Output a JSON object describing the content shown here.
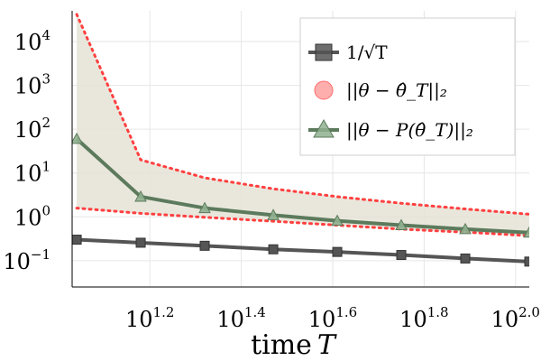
{
  "chart_data": {
    "type": "line",
    "title": "",
    "xlabel_prefix": "time",
    "xlabel_var": "T",
    "ylabel": "",
    "x_scale": "log10",
    "y_scale": "log10",
    "xlim_log10": [
      1.03,
      2.03
    ],
    "ylim_log10": [
      -1.6,
      4.7
    ],
    "x_ticks": [
      {
        "base": "10",
        "exp": "1.2",
        "log10": 1.2
      },
      {
        "base": "10",
        "exp": "1.4",
        "log10": 1.4
      },
      {
        "base": "10",
        "exp": "1.6",
        "log10": 1.6
      },
      {
        "base": "10",
        "exp": "1.8",
        "log10": 1.8
      },
      {
        "base": "10",
        "exp": "2.0",
        "log10": 2.0
      }
    ],
    "y_ticks": [
      {
        "base": "10",
        "exp": "−1",
        "log10": -1
      },
      {
        "base": "10",
        "exp": "0",
        "log10": 0
      },
      {
        "base": "10",
        "exp": "1",
        "log10": 1
      },
      {
        "base": "10",
        "exp": "2",
        "log10": 2
      },
      {
        "base": "10",
        "exp": "3",
        "log10": 3
      },
      {
        "base": "10",
        "exp": "4",
        "log10": 4
      }
    ],
    "grid": true,
    "legend_position": "top-right",
    "series": [
      {
        "name": "1/√T",
        "color": "#555555",
        "marker": "square",
        "x_log10": [
          1.04,
          1.18,
          1.32,
          1.47,
          1.61,
          1.75,
          1.89,
          2.03
        ],
        "y_log10": [
          -0.52,
          -0.59,
          -0.66,
          -0.74,
          -0.8,
          -0.87,
          -0.95,
          -1.02
        ]
      },
      {
        "name": "||θ − θ̂_T||₂",
        "color": "#ff6b6b",
        "marker": "circle",
        "x_log10": [],
        "y_log10": []
      },
      {
        "name": "||θ − P(θ̂_T)||₂",
        "color": "#5c7a5c",
        "marker": "triangle",
        "x_log10": [
          1.04,
          1.18,
          1.32,
          1.47,
          1.61,
          1.75,
          1.89,
          2.03
        ],
        "y_log10": [
          1.78,
          0.46,
          0.2,
          0.04,
          -0.09,
          -0.19,
          -0.28,
          -0.36
        ],
        "upper_log10": [
          4.62,
          1.3,
          0.89,
          0.64,
          0.46,
          0.31,
          0.18,
          0.06
        ],
        "lower_log10": [
          0.2,
          0.08,
          -0.01,
          -0.1,
          -0.19,
          -0.28,
          -0.35,
          -0.43
        ],
        "band_color": "#e5e3d6",
        "bound_color": "#ff4040"
      }
    ]
  }
}
